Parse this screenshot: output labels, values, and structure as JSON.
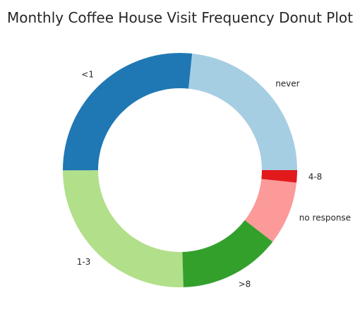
{
  "chart_data": {
    "type": "pie",
    "style": "donut",
    "title": "Monthly Coffee House Visit Frequency Donut Plot",
    "start_angle_deg": 0,
    "direction": "counterclockwise",
    "slices": [
      {
        "label": "never",
        "value": 2962,
        "color": "#a6cee3"
      },
      {
        "label": "<1",
        "value": 3385,
        "color": "#1f78b4"
      },
      {
        "label": "1-3",
        "value": 3225,
        "color": "#b2df8a"
      },
      {
        "label": ">8",
        "value": 1784,
        "color": "#33a02c"
      },
      {
        "label": "no response",
        "value": 1111,
        "color": "#fb9a99"
      },
      {
        "label": "4-8",
        "value": 217,
        "color": "#e31a1c"
      }
    ]
  }
}
